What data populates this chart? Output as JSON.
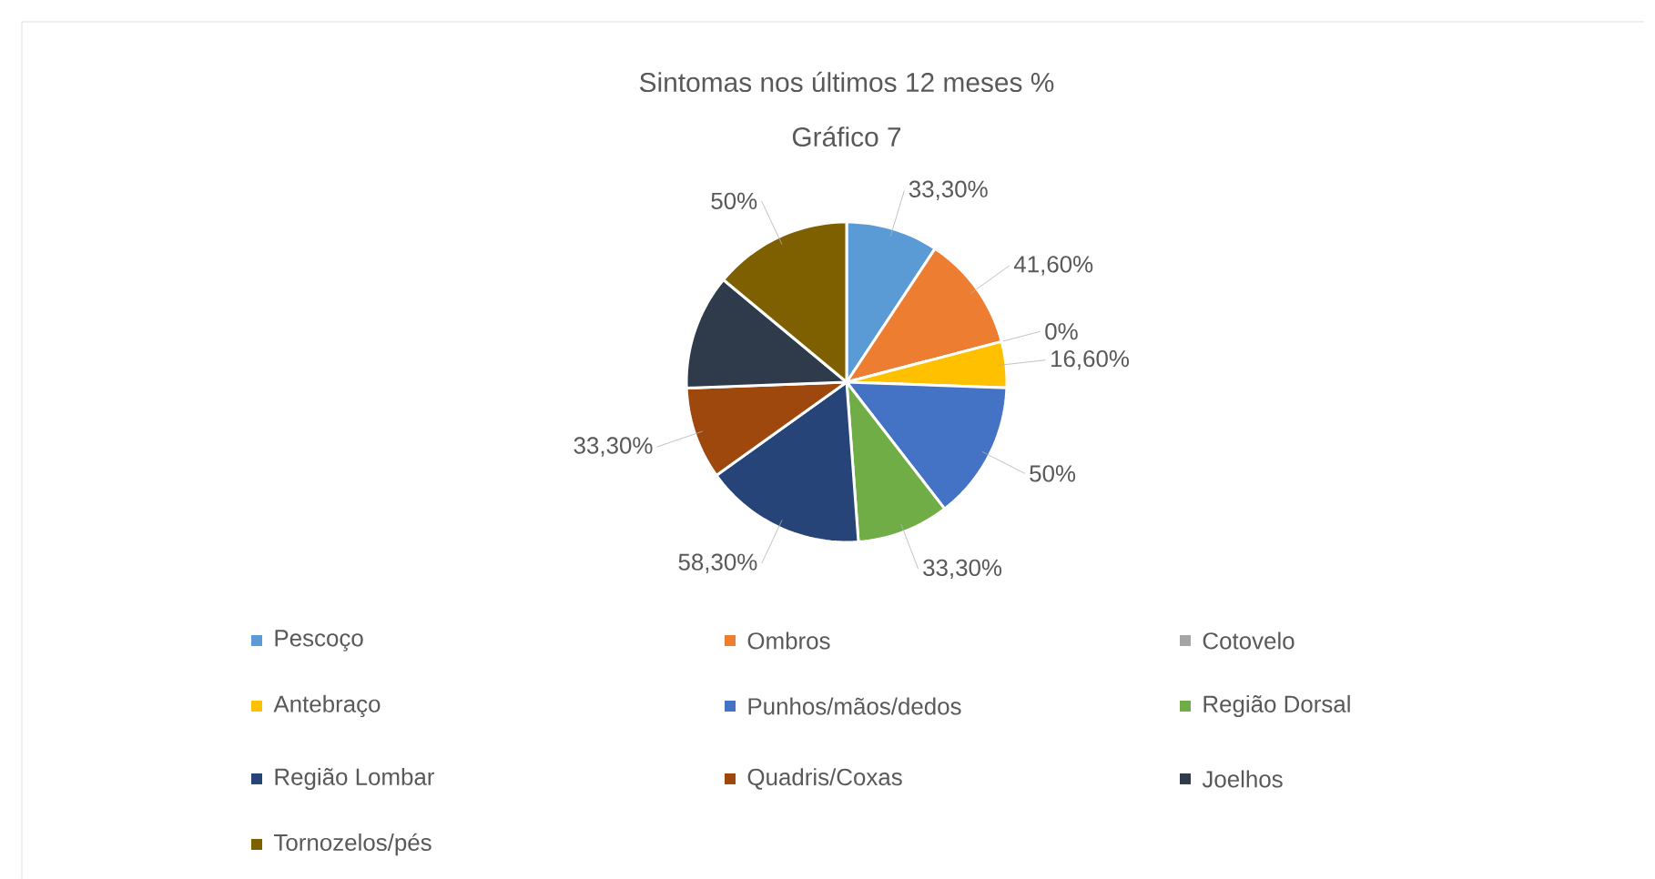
{
  "chart_data": {
    "type": "pie",
    "title": "Sintomas nos últimos 12 meses  %",
    "subtitle": "Gráfico 7",
    "categories": [
      "Pescoço",
      "Ombros",
      "Cotovelo",
      "Antebraço",
      "Punhos/mãos/dedos",
      "Região Dorsal",
      "Região Lombar",
      "Quadris/Coxas",
      "Joelhos",
      "Tornozelos/pés"
    ],
    "values": [
      33.3,
      41.6,
      0,
      16.6,
      50,
      33.3,
      58.3,
      33.3,
      41.6,
      50
    ],
    "value_labels": [
      "33,30%",
      "41,60%",
      "0%",
      "16,60%",
      "50%",
      "33,30%",
      "58,30%",
      "33,30%",
      null,
      "50%"
    ],
    "colors": [
      "#5b9bd5",
      "#ed7d31",
      "#a5a5a5",
      "#ffc000",
      "#4472c4",
      "#70ad47",
      "#264478",
      "#9e480e",
      "#2f3b4b",
      "#7f6000"
    ],
    "legend": "bottom"
  }
}
